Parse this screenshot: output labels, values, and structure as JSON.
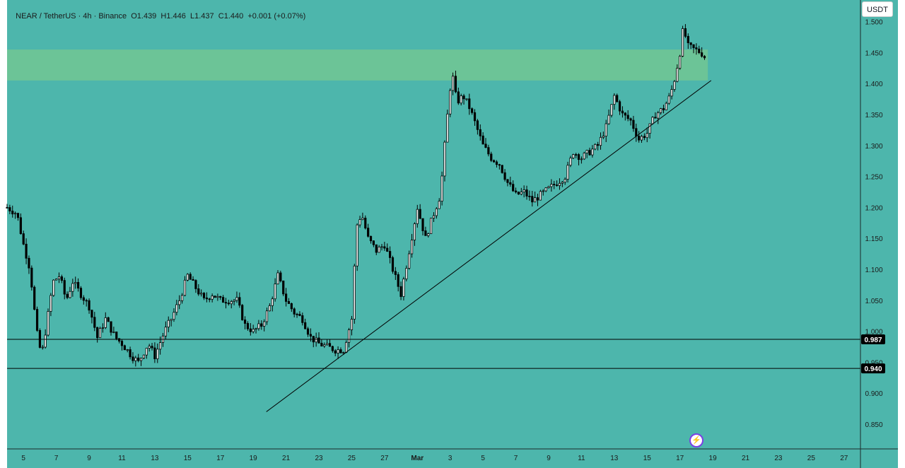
{
  "header": {
    "symbol": "NEAR / TetherUS",
    "interval": "4h",
    "exchange": "Binance",
    "ohlc_text": "O1.439  H1.446  L1.437  C1.440  +0.001 (+0.07%)"
  },
  "toolbar": {
    "currency_label": "USDT"
  },
  "icons": {
    "lightning": "lightning-icon"
  },
  "chart_data": {
    "type": "candlestick",
    "y_ticks": [
      "1.500",
      "1.450",
      "1.400",
      "1.350",
      "1.300",
      "1.250",
      "1.200",
      "1.150",
      "1.100",
      "1.050",
      "1.000",
      "0.950",
      "0.900",
      "0.850"
    ],
    "ylim": [
      0.81,
      1.535
    ],
    "x_ticks": [
      {
        "label": "5",
        "day": 5
      },
      {
        "label": "7",
        "day": 7
      },
      {
        "label": "9",
        "day": 9
      },
      {
        "label": "11",
        "day": 11
      },
      {
        "label": "13",
        "day": 13
      },
      {
        "label": "15",
        "day": 15
      },
      {
        "label": "17",
        "day": 17
      },
      {
        "label": "19",
        "day": 19
      },
      {
        "label": "21",
        "day": 21
      },
      {
        "label": "23",
        "day": 23
      },
      {
        "label": "25",
        "day": 25
      },
      {
        "label": "27",
        "day": 27
      },
      {
        "label": "Mar",
        "day": 29
      },
      {
        "label": "3",
        "day": 31
      },
      {
        "label": "5",
        "day": 33
      },
      {
        "label": "7",
        "day": 35
      },
      {
        "label": "9",
        "day": 37
      },
      {
        "label": "11",
        "day": 39
      },
      {
        "label": "13",
        "day": 41
      },
      {
        "label": "15",
        "day": 43
      },
      {
        "label": "17",
        "day": 45
      },
      {
        "label": "19",
        "day": 47
      },
      {
        "label": "21",
        "day": 49
      },
      {
        "label": "23",
        "day": 51
      },
      {
        "label": "25",
        "day": 53
      },
      {
        "label": "27",
        "day": 55
      }
    ],
    "x_range_days": [
      4.0,
      56.0
    ],
    "price_lines": [
      {
        "value": 0.987,
        "label": "0.987"
      },
      {
        "value": 0.94,
        "label": "0.940"
      }
    ],
    "zone": {
      "low": 1.405,
      "high": 1.455,
      "color": "#6cc497"
    },
    "trendline": {
      "start": {
        "day": 19.8,
        "price": 0.87
      },
      "end": {
        "day": 46.9,
        "price": 1.405
      }
    },
    "candle_anchors": [
      [
        4.0,
        1.2
      ],
      [
        4.6,
        1.19
      ],
      [
        5.0,
        1.14
      ],
      [
        5.4,
        1.1
      ],
      [
        5.8,
        1.0
      ],
      [
        6.1,
        0.96
      ],
      [
        6.4,
        1.01
      ],
      [
        6.8,
        1.08
      ],
      [
        7.2,
        1.09
      ],
      [
        7.6,
        1.05
      ],
      [
        8.0,
        1.08
      ],
      [
        8.5,
        1.06
      ],
      [
        9.0,
        1.04
      ],
      [
        9.5,
        0.99
      ],
      [
        10.0,
        1.02
      ],
      [
        10.6,
        0.99
      ],
      [
        11.0,
        0.98
      ],
      [
        11.6,
        0.96
      ],
      [
        12.0,
        0.95
      ],
      [
        12.6,
        0.98
      ],
      [
        13.0,
        0.96
      ],
      [
        13.6,
        1.0
      ],
      [
        14.0,
        1.02
      ],
      [
        14.5,
        1.05
      ],
      [
        15.0,
        1.09
      ],
      [
        15.5,
        1.07
      ],
      [
        16.0,
        1.05
      ],
      [
        16.5,
        1.06
      ],
      [
        17.0,
        1.05
      ],
      [
        17.5,
        1.05
      ],
      [
        18.0,
        1.05
      ],
      [
        18.5,
        1.01
      ],
      [
        19.0,
        1.0
      ],
      [
        19.5,
        1.01
      ],
      [
        20.0,
        1.04
      ],
      [
        20.5,
        1.09
      ],
      [
        21.0,
        1.05
      ],
      [
        21.5,
        1.03
      ],
      [
        22.0,
        1.02
      ],
      [
        22.5,
        0.99
      ],
      [
        23.0,
        0.98
      ],
      [
        23.5,
        0.975
      ],
      [
        24.0,
        0.97
      ],
      [
        24.5,
        0.97
      ],
      [
        25.0,
        1.02
      ],
      [
        25.3,
        1.17
      ],
      [
        25.6,
        1.19
      ],
      [
        26.0,
        1.15
      ],
      [
        26.5,
        1.13
      ],
      [
        27.0,
        1.14
      ],
      [
        27.5,
        1.1
      ],
      [
        28.0,
        1.06
      ],
      [
        28.5,
        1.13
      ],
      [
        29.0,
        1.2
      ],
      [
        29.5,
        1.15
      ],
      [
        30.0,
        1.19
      ],
      [
        30.4,
        1.22
      ],
      [
        30.8,
        1.34
      ],
      [
        31.1,
        1.42
      ],
      [
        31.4,
        1.37
      ],
      [
        31.8,
        1.38
      ],
      [
        32.2,
        1.36
      ],
      [
        32.6,
        1.33
      ],
      [
        33.0,
        1.3
      ],
      [
        33.5,
        1.28
      ],
      [
        34.0,
        1.27
      ],
      [
        34.5,
        1.24
      ],
      [
        35.0,
        1.22
      ],
      [
        35.5,
        1.225
      ],
      [
        36.0,
        1.21
      ],
      [
        36.5,
        1.22
      ],
      [
        37.0,
        1.23
      ],
      [
        37.5,
        1.24
      ],
      [
        38.0,
        1.25
      ],
      [
        38.5,
        1.29
      ],
      [
        39.0,
        1.28
      ],
      [
        39.5,
        1.29
      ],
      [
        40.0,
        1.3
      ],
      [
        40.5,
        1.33
      ],
      [
        41.0,
        1.38
      ],
      [
        41.5,
        1.35
      ],
      [
        42.0,
        1.34
      ],
      [
        42.5,
        1.31
      ],
      [
        43.0,
        1.32
      ],
      [
        43.5,
        1.35
      ],
      [
        44.0,
        1.36
      ],
      [
        44.4,
        1.38
      ],
      [
        44.7,
        1.41
      ],
      [
        45.0,
        1.45
      ],
      [
        45.2,
        1.49
      ],
      [
        45.5,
        1.46
      ],
      [
        45.9,
        1.455
      ],
      [
        46.3,
        1.45
      ],
      [
        46.6,
        1.44
      ]
    ]
  },
  "style": {
    "background": "#4db6ac",
    "up_color": "#ffffff",
    "down_color": "#000000",
    "label_bg": "#000000"
  }
}
